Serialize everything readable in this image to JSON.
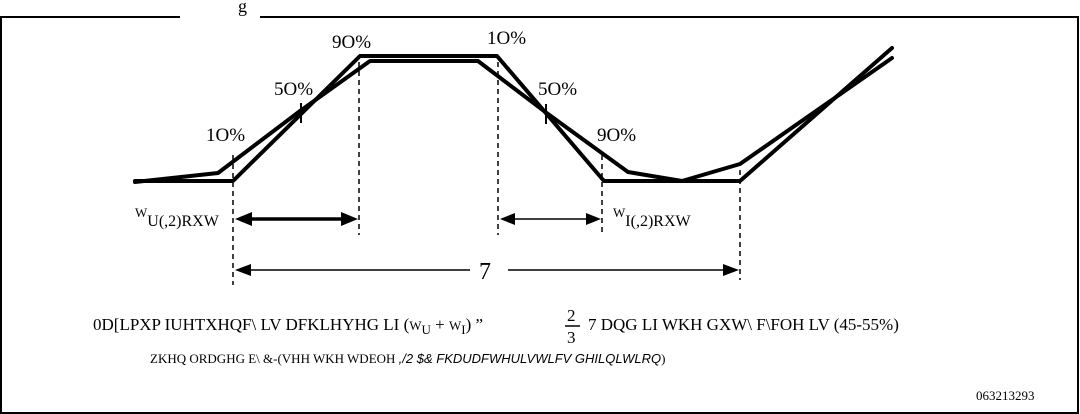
{
  "heading_fragment": "g",
  "levels": {
    "rise_10": "1O%",
    "rise_50": "5O%",
    "rise_90": "9O%",
    "fall_10": "1O%",
    "fall_50": "5O%",
    "fall_90": "9O%"
  },
  "rise_label": {
    "sym": "W",
    "sub": "U(,2)RXW"
  },
  "fall_label": {
    "sym": "W",
    "sub": "I(,2)RXW"
  },
  "period_label": "7",
  "caption": {
    "line1_a": "0D[LPXP IUHTXHQF\\ LV DFKLHYHG LI (",
    "line1_t1": "W",
    "line1_s1": "U",
    "line1_plus": " + ",
    "line1_t2": "W",
    "line1_s2": "I",
    "line1_b": ") ”",
    "frac_num": "2",
    "frac_den": "3",
    "line1_c": "7 DQG LI WKH GXW\\ F\\FOH LV (45-55%)",
    "line2_a": "ZKHQ ORDGHG E\\ &-(VHH WKH WDEOH ",
    "line2_b": ",/2 $& FKDUDFWHULVWLFV GHILQLWLRQ",
    "line2_c": ")"
  },
  "figure_number": "063213293"
}
